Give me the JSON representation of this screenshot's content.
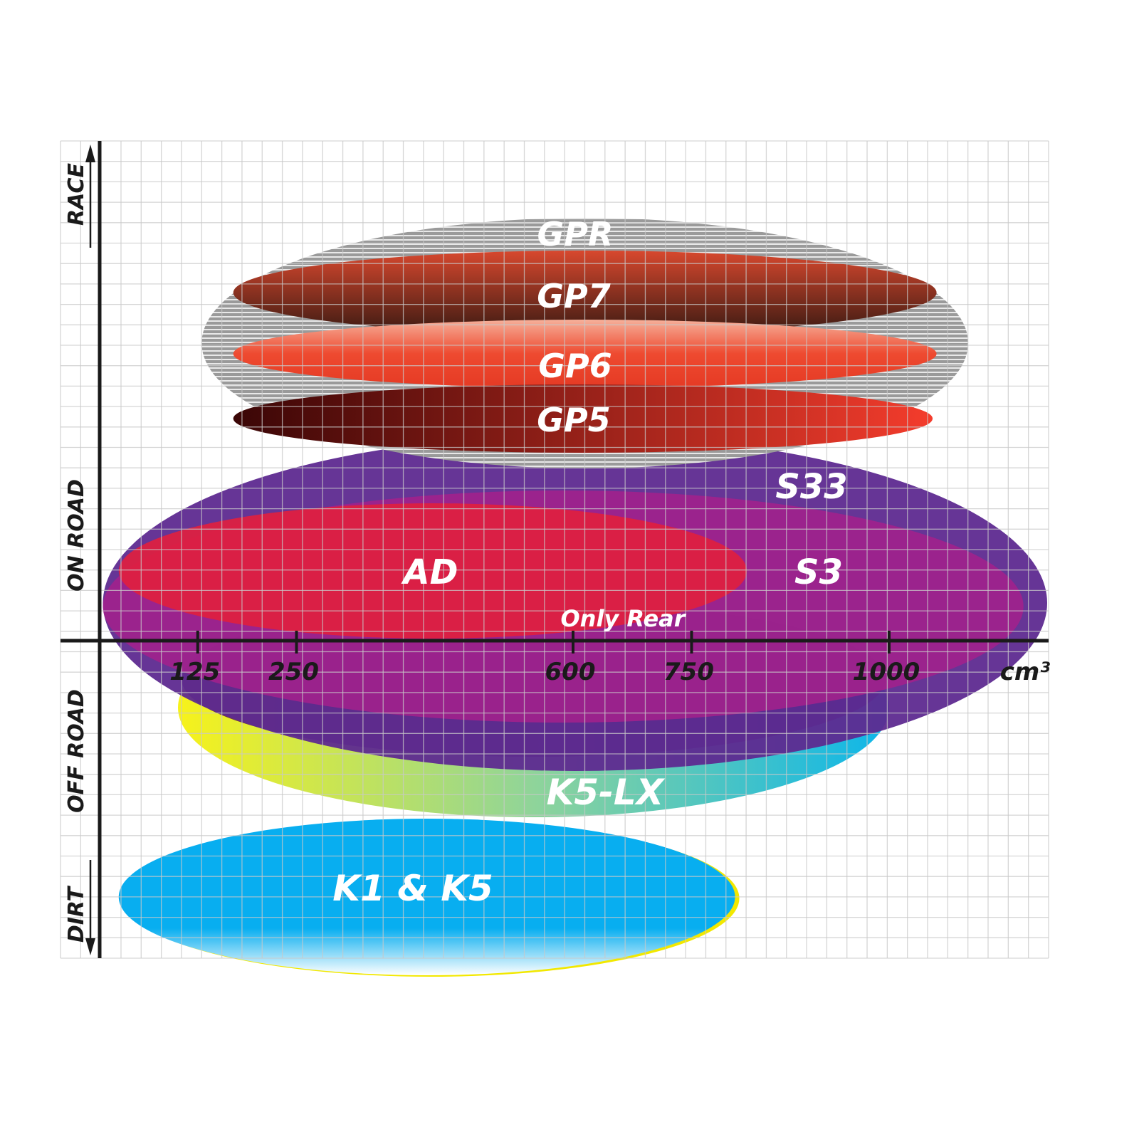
{
  "chart_data": {
    "type": "range-ellipse",
    "xlabel": "cm³",
    "x_ticks": [
      125,
      250,
      600,
      750,
      1000
    ],
    "x_range": [
      0,
      1200
    ],
    "y_categories": [
      "RACE",
      "ON ROAD",
      "OFF ROAD",
      "DIRT"
    ],
    "grid": true,
    "series": [
      {
        "name": "K5-LX",
        "x_min": 100,
        "x_max": 1000,
        "category": "OFF ROAD",
        "colors": [
          "#f5ef1a",
          "#14b4e8"
        ]
      },
      {
        "name": "S33",
        "x_min": 5,
        "x_max": 1200,
        "category": "ON ROAD",
        "colors": [
          "#5e2a90",
          "#5e2a90"
        ]
      },
      {
        "name": "S3",
        "x_min": 5,
        "x_max": 1170,
        "category": "ON ROAD",
        "colors": [
          "#a0228c",
          "#a0228c"
        ]
      },
      {
        "name": "AD",
        "x_min": 25,
        "x_max": 820,
        "category": "ON ROAD",
        "note": "Only Rear",
        "colors": [
          "#e0203f",
          "#e0203f"
        ]
      },
      {
        "name": "GPR",
        "x_min": 130,
        "x_max": 1100,
        "category": "RACE",
        "colors": [
          "#8c8c8c",
          "#8c8c8c"
        ]
      },
      {
        "name": "GP7",
        "x_min": 170,
        "x_max": 1060,
        "category": "RACE",
        "colors": [
          "#c0392b",
          "#3a1a10"
        ]
      },
      {
        "name": "GP6",
        "x_min": 170,
        "x_max": 1060,
        "category": "RACE",
        "colors": [
          "#f4a08a",
          "#e83a25"
        ]
      },
      {
        "name": "GP5",
        "x_min": 170,
        "x_max": 1055,
        "category": "RACE",
        "colors": [
          "#4a0808",
          "#f03c2c"
        ]
      },
      {
        "name": "K1 & K5",
        "x_min": 25,
        "x_max": 805,
        "category": "DIRT",
        "colors": [
          "#08aef0",
          "#08aef0"
        ]
      }
    ]
  }
}
